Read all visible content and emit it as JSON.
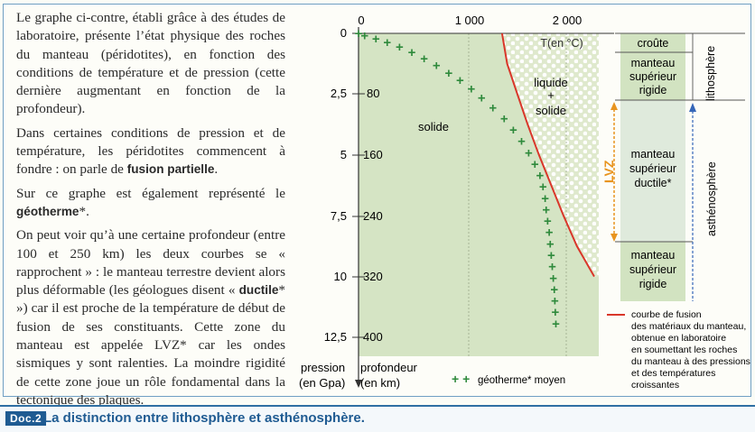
{
  "paragraphs": {
    "p1": "Le graphe ci-contre, établi grâce à des études de laboratoire, présente l’état physique des roches du manteau (péridotites), en fonction des conditions de température et de pression (cette dernière augmentant en fonction de la profondeur).",
    "p2_a": "Dans certaines conditions de pression et de température, les péridotites commencent à fondre : on parle de ",
    "p2_b": "fusion partielle",
    "p2_c": ".",
    "p3_a": "Sur ce graphe est également représenté le ",
    "p3_b": "géotherme",
    "p3_c": "*.",
    "p4_a": "On peut voir qu’à une certaine profondeur (entre 100 et 250 km) les deux courbes se « rapprochent » : le manteau terrestre devient alors plus déformable (les géologues disent « ",
    "p4_b": "ductile",
    "p4_c": "* ») car il est proche de la température de début de fusion de ses constituants. Cette zone du manteau est appelée LVZ* car les ondes sismiques y sont ralenties. La moindre rigidité de cette zone joue un rôle fondamental dans la tectonique des plaques."
  },
  "caption": {
    "tag": "Doc.2",
    "title": "La distinction entre lithosphère et asthénosphère."
  },
  "chart_data": {
    "type": "line",
    "x_axis": {
      "ticks": [
        "0",
        "1 000",
        "2 000"
      ],
      "label": "T(en °C)",
      "range": [
        0,
        2300
      ]
    },
    "y_axis_pressure": {
      "ticks": [
        "0",
        "2,5",
        "5",
        "7,5",
        "10",
        "12,5"
      ],
      "label_line1": "pression",
      "label_line2": "(en Gpa)"
    },
    "y_axis_depth": {
      "ticks": [
        "80",
        "160",
        "240",
        "320",
        "400"
      ],
      "label_line1": "profondeur",
      "label_line2": "(en km)"
    },
    "regions": {
      "solid": "solide",
      "liquid_line1": "liquide",
      "liquid_line2": "+",
      "liquid_line3": "solide"
    },
    "series": [
      {
        "name": "courbe de fusion des matériaux du manteau",
        "style": "red-line",
        "x": [
          1400,
          1450,
          1550,
          1650,
          1760,
          1880,
          2000,
          2130,
          2300
        ],
        "y": [
          0,
          40,
          80,
          120,
          160,
          200,
          240,
          280,
          320
        ]
      },
      {
        "name": "géotherme moyen",
        "style": "green-plus",
        "x": [
          0,
          60,
          170,
          280,
          400,
          520,
          640,
          760,
          880,
          990,
          1100,
          1200,
          1310,
          1420,
          1510,
          1590,
          1660,
          1720,
          1770,
          1800,
          1820,
          1830,
          1845,
          1860,
          1870,
          1880,
          1890,
          1900,
          1910,
          1915,
          1920,
          1925
        ],
        "y": [
          0,
          3,
          7,
          12,
          18,
          25,
          33,
          42,
          52,
          62,
          73,
          85,
          98,
          112,
          127,
          142,
          157,
          172,
          187,
          202,
          217,
          232,
          247,
          262,
          277,
          292,
          307,
          322,
          337,
          352,
          367,
          382
        ]
      }
    ],
    "legend": {
      "fusion": [
        "courbe de fusion",
        "des matériaux du manteau,",
        "obtenue en laboratoire",
        "en soumettant les roches",
        "du manteau à des pressions",
        "et des températures",
        "croissantes"
      ],
      "geotherm": "géotherme* moyen"
    },
    "colors": {
      "solid_fill": "#d5e4c4",
      "liquid_fill": "#dde9c9",
      "fusion_line": "#d9372a",
      "geotherm": "#2f8a3c",
      "lvz": "#e8941f",
      "asth_arrow": "#3566b8"
    }
  },
  "column": {
    "crust": "croûte",
    "upper_rigid": [
      "manteau",
      "supérieur",
      "rigide"
    ],
    "ductile": [
      "manteau",
      "supérieur",
      "ductile*"
    ],
    "lower_rigid": [
      "manteau",
      "supérieur",
      "rigide"
    ],
    "lvz": "LVZ",
    "lithosphere": "lithosphère",
    "asthenosphere": "asthénosphère"
  }
}
